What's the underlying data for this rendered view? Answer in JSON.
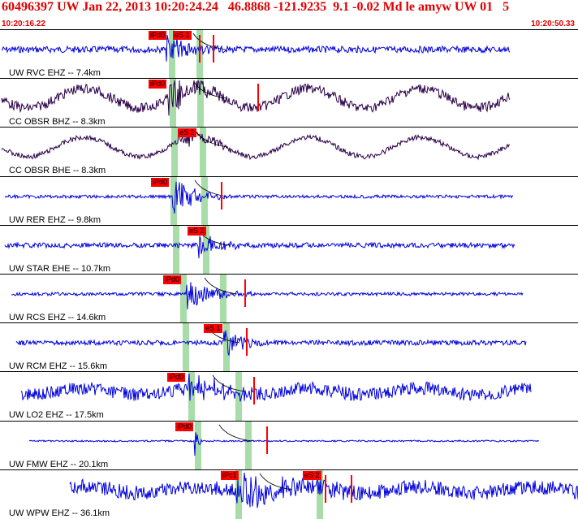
{
  "header": {
    "title": "60496397 UW Jan 22, 2013 10:20:24.24   46.8868 -121.9235  9.1 -0.02 Md le amyw UW 01   5",
    "time_start": "10:20:16.22",
    "time_end": "10:20:50.33"
  },
  "colors": {
    "trace_blue": "#0000dd",
    "trace_purple": "#2a0048",
    "pick_red": "#ff0000",
    "window_green": "#a8dca8",
    "header_red": "#e00000"
  },
  "traces": [
    {
      "label": "UW RVC EHZ -- 7.4km",
      "color": "blue",
      "picks": [
        "iPd0",
        "eS 1"
      ]
    },
    {
      "label": "CC OBSR BHZ -- 8.3km",
      "color": "purple",
      "picks": [
        "iPd0"
      ]
    },
    {
      "label": "CC OBSR BHE -- 8.3km",
      "color": "purple",
      "picks": [
        "eS 2"
      ]
    },
    {
      "label": "UW RER EHZ -- 9.8km",
      "color": "blue",
      "picks": [
        "iPd0"
      ]
    },
    {
      "label": "UW STAR EHE -- 10.7km",
      "color": "blue",
      "picks": [
        "eS 2"
      ]
    },
    {
      "label": "UW RCS EHZ -- 14.6km",
      "color": "blue",
      "picks": [
        "iPd0"
      ]
    },
    {
      "label": "UW RCM EHZ -- 15.6km",
      "color": "blue",
      "picks": [
        "eS 1"
      ]
    },
    {
      "label": "UW LO2 EHZ -- 17.5km",
      "color": "blue",
      "picks": [
        "iPd0"
      ]
    },
    {
      "label": "UW FMW EHZ -- 20.1km",
      "color": "blue",
      "picks": [
        "iPd0"
      ]
    },
    {
      "label": "UW WPW EHZ -- 36.1km",
      "color": "blue",
      "picks": [
        "iPc1",
        "eS 2"
      ]
    }
  ]
}
